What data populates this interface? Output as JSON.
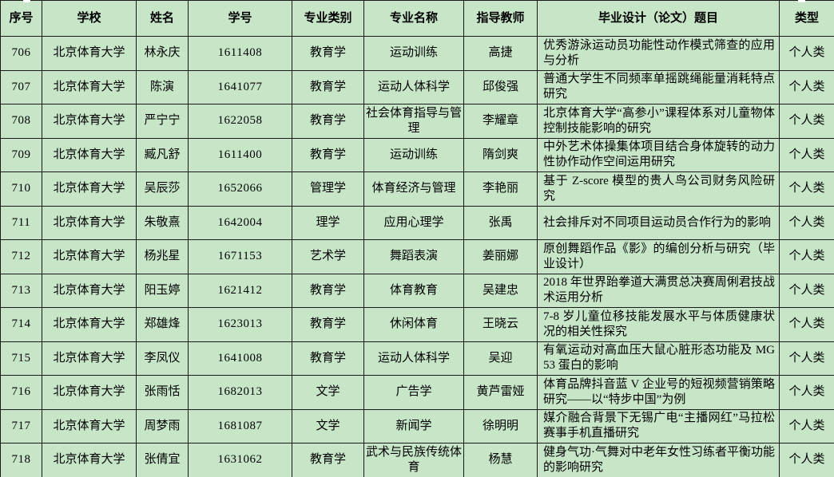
{
  "colors": {
    "cell_bg": "#c7e6c8",
    "grid_line": "#1a1a1a",
    "text": "#000000"
  },
  "table": {
    "headers": [
      "序号",
      "学校",
      "姓名",
      "学号",
      "专业类别",
      "专业名称",
      "指导教师",
      "毕业设计（论文）题目",
      "类型"
    ],
    "rows": [
      {
        "no": "706",
        "school": "北京体育大学",
        "name": "林永庆",
        "sid": "1611408",
        "category": "教育学",
        "major": "运动训练",
        "advisor": "高捷",
        "title": "优秀游泳运动员功能性动作模式筛查的应用与分析",
        "type": "个人类"
      },
      {
        "no": "707",
        "school": "北京体育大学",
        "name": "陈演",
        "sid": "1641077",
        "category": "教育学",
        "major": "运动人体科学",
        "advisor": "邱俊强",
        "title": "普通大学生不同频率单摇跳绳能量消耗特点研究",
        "type": "个人类"
      },
      {
        "no": "708",
        "school": "北京体育大学",
        "name": "严宁宁",
        "sid": "1622058",
        "category": "教育学",
        "major": "社会体育指导与管理",
        "advisor": "李耀章",
        "title": "北京体育大学“高参小”课程体系对儿童物体控制技能影响的研究",
        "type": "个人类"
      },
      {
        "no": "709",
        "school": "北京体育大学",
        "name": "臧凡舒",
        "sid": "1611400",
        "category": "教育学",
        "major": "运动训练",
        "advisor": "隋剑爽",
        "title": "中外艺术体操集体项目结合身体旋转的动力性协作动作空间运用研究",
        "type": "个人类"
      },
      {
        "no": "710",
        "school": "北京体育大学",
        "name": "吴辰莎",
        "sid": "1652066",
        "category": "管理学",
        "major": "体育经济与管理",
        "advisor": "李艳丽",
        "title": "基于 Z-score 模型的贵人鸟公司财务风险研究",
        "type": "个人类"
      },
      {
        "no": "711",
        "school": "北京体育大学",
        "name": "朱敬熹",
        "sid": "1642004",
        "category": "理学",
        "major": "应用心理学",
        "advisor": "张禹",
        "title": "社会排斥对不同项目运动员合作行为的影响",
        "type": "个人类"
      },
      {
        "no": "712",
        "school": "北京体育大学",
        "name": "杨兆星",
        "sid": "1671153",
        "category": "艺术学",
        "major": "舞蹈表演",
        "advisor": "姜丽娜",
        "title": "原创舞蹈作品《影》的编创分析与研究（毕业设计）",
        "type": "个人类"
      },
      {
        "no": "713",
        "school": "北京体育大学",
        "name": "阳玉婷",
        "sid": "1621412",
        "category": "教育学",
        "major": "体育教育",
        "advisor": "吴建忠",
        "title": "2018 年世界跆拳道大满贯总决赛周俐君技战术运用分析",
        "type": "个人类"
      },
      {
        "no": "714",
        "school": "北京体育大学",
        "name": "郑雄烽",
        "sid": "1623013",
        "category": "教育学",
        "major": "休闲体育",
        "advisor": "王晓云",
        "title": "7-8 岁儿童位移技能发展水平与体质健康状况的相关性探究",
        "type": "个人类"
      },
      {
        "no": "715",
        "school": "北京体育大学",
        "name": "李凤仪",
        "sid": "1641008",
        "category": "教育学",
        "major": "运动人体科学",
        "advisor": "吴迎",
        "title": "有氧运动对高血压大鼠心脏形态功能及 MG53 蛋白的影响",
        "type": "个人类"
      },
      {
        "no": "716",
        "school": "北京体育大学",
        "name": "张雨恬",
        "sid": "1682013",
        "category": "文学",
        "major": "广告学",
        "advisor": "黄芦雷娅",
        "title": "体育品牌抖音蓝 V 企业号的短视频营销策略研究——以“特步中国”为例",
        "type": "个人类"
      },
      {
        "no": "717",
        "school": "北京体育大学",
        "name": "周梦雨",
        "sid": "1681087",
        "category": "文学",
        "major": "新闻学",
        "advisor": "徐明明",
        "title": "媒介融合背景下无锡广电“主播网红”马拉松赛事手机直播研究",
        "type": "个人类"
      },
      {
        "no": "718",
        "school": "北京体育大学",
        "name": "张倩宜",
        "sid": "1631062",
        "category": "教育学",
        "major": "武术与民族传统体育",
        "advisor": "杨慧",
        "title": "健身气功·气舞对中老年女性习练者平衡功能的影响研究",
        "type": "个人类"
      }
    ]
  }
}
